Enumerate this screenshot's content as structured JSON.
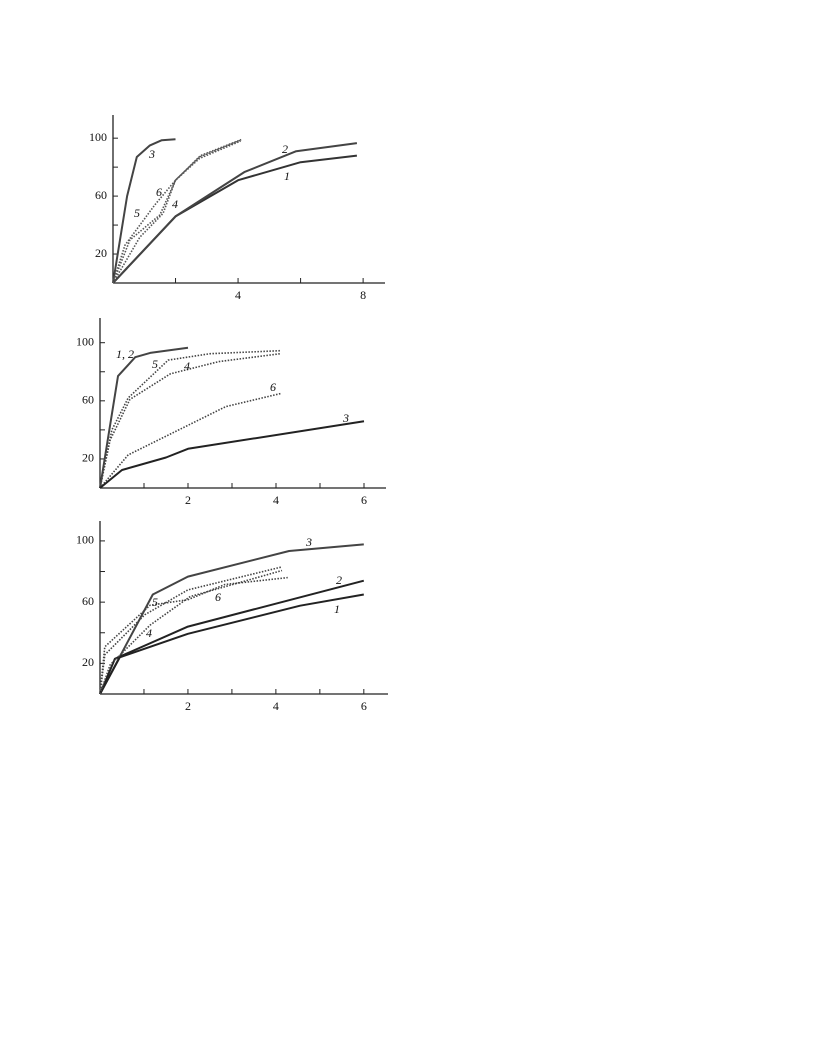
{
  "chart_data": [
    {
      "type": "line",
      "xlim": [
        0,
        8.7
      ],
      "ylim": [
        0,
        116
      ],
      "xticks": [
        4,
        8
      ],
      "yticks": [
        20,
        60,
        100
      ],
      "xminor": [
        2,
        6
      ],
      "yminor": [
        40,
        80
      ],
      "series": [
        {
          "name": "3",
          "color": "#444",
          "style": "solid",
          "x": [
            0,
            0.45,
            0.76,
            1.18,
            1.56,
            2.0
          ],
          "values": [
            0,
            60,
            87,
            95,
            98.6,
            99.3
          ]
        },
        {
          "name": "1",
          "color": "#333",
          "style": "solid",
          "x": [
            0,
            2,
            4,
            6,
            7.8
          ],
          "values": [
            0,
            46,
            71,
            83.4,
            88
          ]
        },
        {
          "name": "2",
          "color": "#444",
          "style": "solid",
          "x": [
            0,
            2,
            4.2,
            5.86,
            7.8
          ],
          "values": [
            0,
            46,
            76.6,
            91,
            96.6
          ]
        },
        {
          "name": "6",
          "color": "#555",
          "style": "dotted",
          "x": [
            0,
            0.38,
            1.34,
            2,
            2.77,
            4.08
          ],
          "values": [
            0,
            26,
            54,
            71,
            87,
            98.6
          ]
        },
        {
          "name": "5",
          "color": "#555",
          "style": "dotted",
          "x": [
            0,
            0.54,
            1.5,
            2,
            2.8,
            4.1
          ],
          "values": [
            0,
            29.7,
            47,
            71,
            88,
            99
          ]
        },
        {
          "name": "4",
          "color": "#555",
          "style": "dotted",
          "x": [
            0,
            0.86,
            1.6,
            2,
            2.77,
            4.08
          ],
          "values": [
            0,
            31.7,
            48,
            71,
            86,
            98
          ]
        }
      ]
    },
    {
      "type": "line",
      "xlim": [
        0,
        6.5
      ],
      "ylim": [
        0,
        117
      ],
      "xticks": [
        2,
        4,
        6
      ],
      "yticks": [
        20,
        60,
        100
      ],
      "xminor": [
        1,
        3,
        5
      ],
      "yminor": [
        40,
        80
      ],
      "series": [
        {
          "name": "1, 2",
          "color": "#444",
          "style": "solid",
          "x": [
            0,
            0.41,
            0.8,
            1.14,
            2
          ],
          "values": [
            0,
            77,
            90,
            93,
            96.5
          ]
        },
        {
          "name": "5",
          "color": "#444",
          "style": "dotted",
          "x": [
            0,
            0.27,
            0.64,
            1.55,
            2.5,
            4.1
          ],
          "values": [
            0,
            40,
            62,
            88,
            92.4,
            94.5
          ]
        },
        {
          "name": "4",
          "color": "#444",
          "style": "dotted",
          "x": [
            0,
            0.23,
            0.68,
            1.6,
            2.7,
            4.1
          ],
          "values": [
            0,
            33,
            61,
            78.6,
            87,
            92.4
          ]
        },
        {
          "name": "6",
          "color": "#444",
          "style": "dotted",
          "x": [
            0,
            0.64,
            2.86,
            4.1
          ],
          "values": [
            0,
            22.8,
            56,
            65
          ]
        },
        {
          "name": "3",
          "color": "#222",
          "style": "solid",
          "x": [
            0,
            0.5,
            1.5,
            2,
            6
          ],
          "values": [
            0,
            12.4,
            21,
            27,
            46
          ]
        }
      ]
    },
    {
      "type": "line",
      "xlim": [
        0,
        6.55
      ],
      "ylim": [
        0,
        113
      ],
      "xticks": [
        2,
        4,
        6
      ],
      "yticks": [
        20,
        60,
        100
      ],
      "xminor": [
        1,
        3,
        5
      ],
      "yminor": [
        40,
        80
      ],
      "series": [
        {
          "name": "3",
          "color": "#444",
          "style": "solid",
          "x": [
            0,
            1.2,
            2,
            4.3,
            6
          ],
          "values": [
            0,
            65,
            76.7,
            93.4,
            97.7
          ]
        },
        {
          "name": "2",
          "color": "#222",
          "style": "solid",
          "x": [
            0,
            0.34,
            2,
            6
          ],
          "values": [
            0,
            23,
            44,
            74
          ]
        },
        {
          "name": "1",
          "color": "#222",
          "style": "solid",
          "x": [
            0,
            0.45,
            2,
            4.55,
            6
          ],
          "values": [
            0,
            24,
            39.3,
            57.7,
            65
          ]
        },
        {
          "name": "5",
          "color": "#444",
          "style": "dotted",
          "x": [
            0,
            0.11,
            1.02,
            2,
            4.14
          ],
          "values": [
            0,
            25.6,
            51.8,
            68,
            83
          ]
        },
        {
          "name": "4",
          "color": "#444",
          "style": "dotted",
          "x": [
            0,
            0.23,
            1.14,
            2.05,
            4.14
          ],
          "values": [
            0,
            19,
            45,
            63.6,
            80.7
          ]
        },
        {
          "name": "6",
          "color": "#444",
          "style": "dotted",
          "x": [
            0,
            0.11,
            1.14,
            2,
            2.84,
            4.27
          ],
          "values": [
            0,
            30.8,
            58,
            61.6,
            71.5,
            76
          ]
        }
      ]
    }
  ]
}
